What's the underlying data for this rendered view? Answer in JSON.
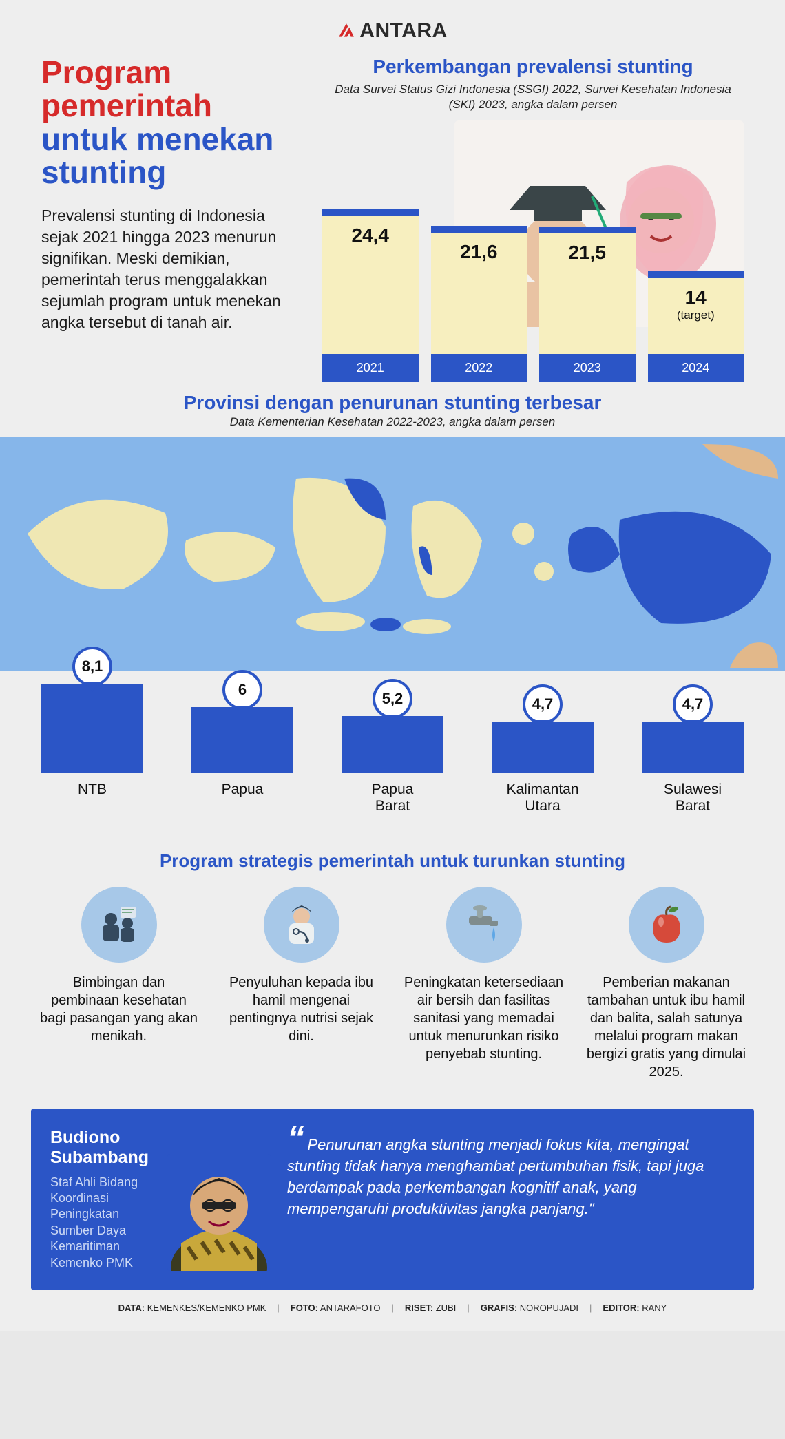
{
  "brand": {
    "name": "ANTARA",
    "logo_color": "#d62a2a"
  },
  "colors": {
    "red": "#d62a2a",
    "blue": "#2b55c6",
    "blue_light": "#86b6ea",
    "bar_fill": "#f7efbf",
    "bg": "#eeeeee",
    "text": "#111111"
  },
  "hero": {
    "title_line1": "Program pemerintah",
    "title_line1_color": "#d62a2a",
    "title_line2": "untuk menekan stunting",
    "title_line2_color": "#2b55c6",
    "lead": "Prevalensi stunting di Indonesia sejak 2021 hingga 2023 menurun signifikan. Meski demikian, pemerintah terus menggalakkan sejumlah program untuk menekan angka tersebut di tanah air."
  },
  "prevalence_chart": {
    "title": "Perkembangan prevalensi stunting",
    "title_color": "#2b55c6",
    "subtitle": "Data Survei Status Gizi Indonesia (SSGI) 2022, Survei Kesehatan Indonesia (SKI) 2023, angka dalam persen",
    "type": "bar",
    "max": 24.4,
    "bars": [
      {
        "year": "2021",
        "value": "24,4",
        "num": 24.4,
        "note": ""
      },
      {
        "year": "2022",
        "value": "21,6",
        "num": 21.6,
        "note": ""
      },
      {
        "year": "2023",
        "value": "21,5",
        "num": 21.5,
        "note": ""
      },
      {
        "year": "2024",
        "value": "14",
        "num": 14,
        "note": "(target)"
      }
    ],
    "bar_fill": "#f7efbf",
    "bar_cap": "#2b55c6",
    "foot_bg": "#2b55c6",
    "value_fontsize": 28
  },
  "map_section": {
    "title": "Provinsi dengan penurunan stunting terbesar",
    "title_color": "#2b55c6",
    "subtitle": "Data Kementerian Kesehatan 2022-2023, angka dalam persen",
    "sea_color": "#86b6ea",
    "land_color": "#efe7b3",
    "highlight_color": "#2b55c6",
    "type": "bar",
    "max": 8.1,
    "bars": [
      {
        "label": "NTB",
        "value": "8,1",
        "num": 8.1
      },
      {
        "label": "Papua",
        "value": "6",
        "num": 6.0
      },
      {
        "label": "Papua Barat",
        "value": "5,2",
        "num": 5.2
      },
      {
        "label": "Kalimantan Utara",
        "value": "4,7",
        "num": 4.7
      },
      {
        "label": "Sulawesi Barat",
        "value": "4,7",
        "num": 4.7
      }
    ],
    "bar_color": "#2b55c6",
    "pin_border": "#2b55c6",
    "pin_fill": "#ffffff"
  },
  "programs": {
    "title": "Program strategis pemerintah untuk turunkan stunting",
    "title_color": "#2b55c6",
    "icon_bg": "#a7c8e8",
    "items": [
      {
        "icon": "couple-icon",
        "text": "Bimbingan dan pembinaan kesehatan bagi pasangan yang akan menikah."
      },
      {
        "icon": "doctor-icon",
        "text": "Penyuluhan kepada ibu hamil mengenai pentingnya nutrisi sejak dini."
      },
      {
        "icon": "faucet-icon",
        "text": "Peningkatan ketersediaan air bersih dan fasilitas sanitasi yang memadai untuk menurunkan risiko penyebab stunting."
      },
      {
        "icon": "apple-icon",
        "text": "Pemberian makanan tambahan untuk ibu hamil dan balita, salah satunya melalui program makan bergizi gratis yang dimulai 2025."
      }
    ]
  },
  "quote": {
    "name": "Budiono Subambang",
    "role": "Staf Ahli Bidang Koordinasi Peningkatan Sumber Daya Kemaritiman Kemenko PMK",
    "text": "Penurunan angka stunting menjadi fokus kita, mengingat stunting tidak hanya menghambat pertumbuhan fisik, tapi juga berdampak pada perkembangan kognitif anak, yang mempengaruhi produktivitas jangka panjang.\"",
    "box_bg": "#2b55c6"
  },
  "credits": [
    {
      "k": "DATA",
      "v": "KEMENKES/KEMENKO PMK"
    },
    {
      "k": "FOTO",
      "v": "ANTARAFOTO"
    },
    {
      "k": "RISET",
      "v": "ZUBI"
    },
    {
      "k": "GRAFIS",
      "v": "NOROPUJADI"
    },
    {
      "k": "EDITOR",
      "v": "RANY"
    }
  ]
}
